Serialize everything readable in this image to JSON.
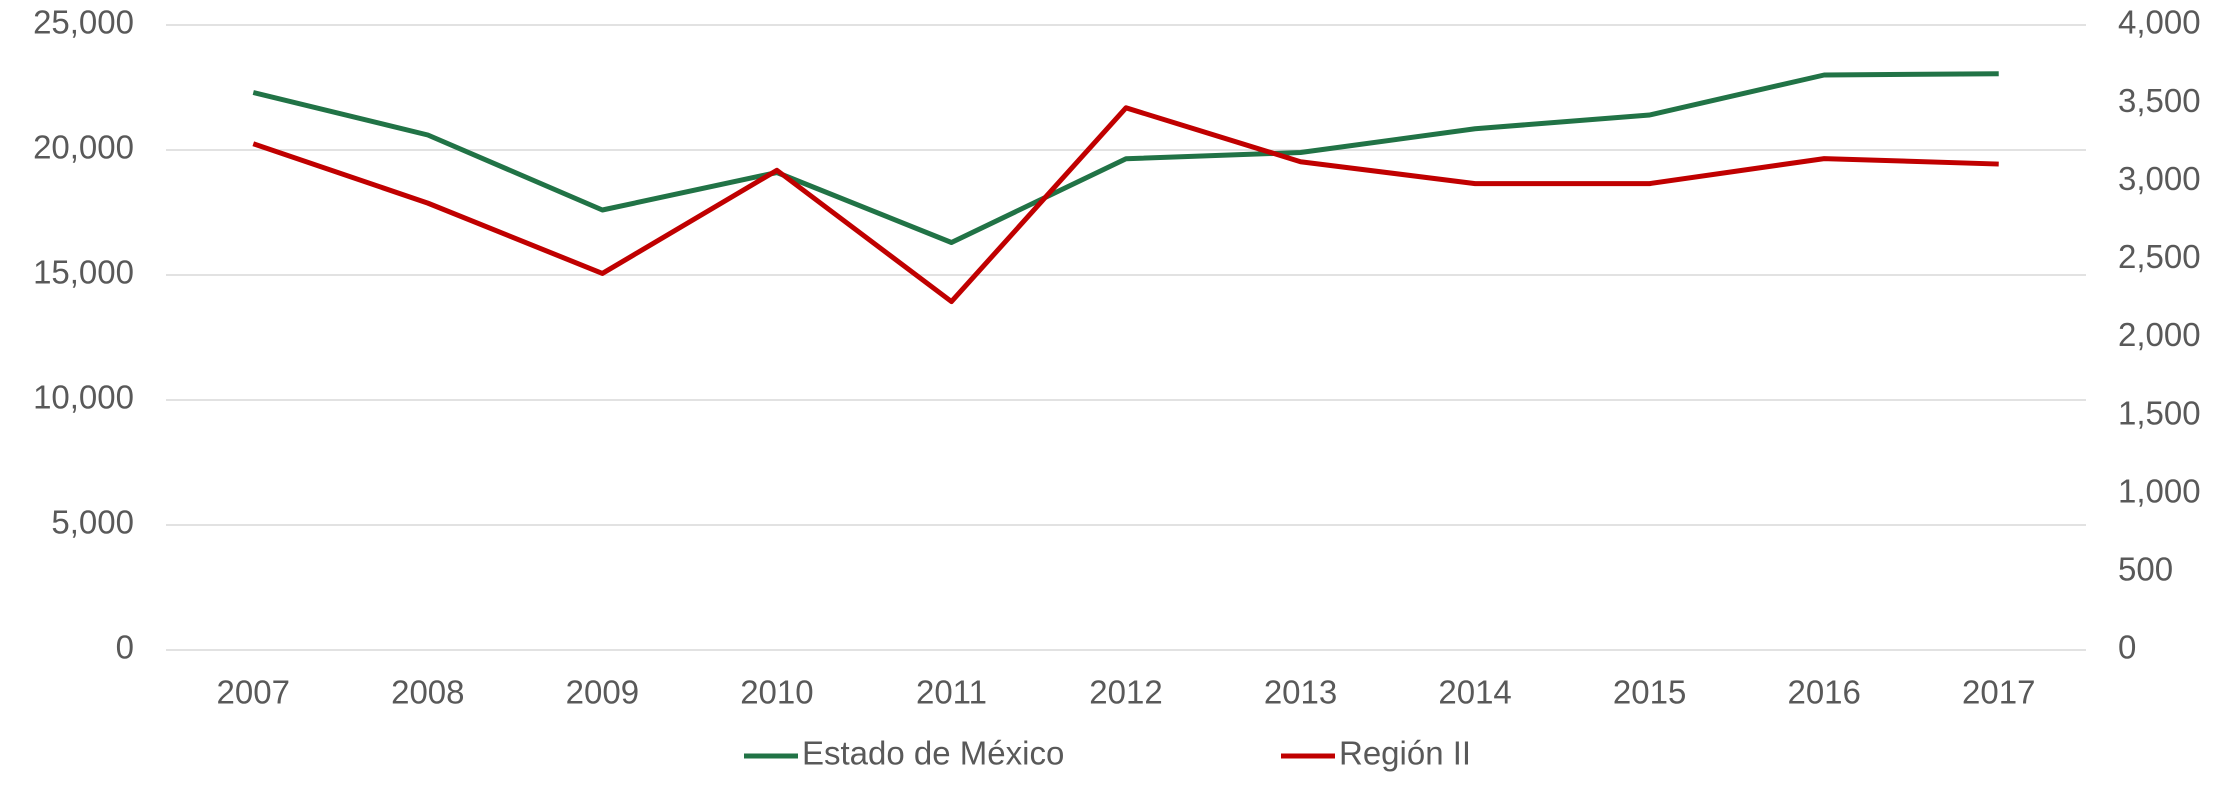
{
  "chart_data": {
    "type": "line",
    "categories": [
      "2007",
      "2008",
      "2009",
      "2010",
      "2011",
      "2012",
      "2013",
      "2014",
      "2015",
      "2016",
      "2017"
    ],
    "series": [
      {
        "name": "Estado de México",
        "color": "#217346",
        "values": [
          22300,
          20600,
          17600,
          19100,
          16300,
          19650,
          19900,
          20850,
          21400,
          23000,
          23050
        ]
      },
      {
        "name": "Región II",
        "color": "#c00000",
        "axis": "y2",
        "values": [
          3240,
          2860,
          2410,
          3070,
          2230,
          3470,
          3125,
          2985,
          2985,
          3145,
          3110
        ]
      }
    ],
    "ylim": [
      0,
      25000
    ],
    "yticks": [
      0,
      {
        "value": 5000,
        "label": "5,000"
      },
      {
        "value": 10000,
        "label": "10,000"
      },
      {
        "value": 15000,
        "label": "15,000"
      },
      {
        "value": 20000,
        "label": "20,000"
      },
      {
        "value": 25000,
        "label": "25,000"
      }
    ],
    "y2lim": [
      0,
      4000
    ],
    "y2ticks": [
      0,
      500,
      {
        "value": 1000,
        "label": "1,000"
      },
      {
        "value": 1500,
        "label": "1,500"
      },
      {
        "value": 2000,
        "label": "2,000"
      },
      {
        "value": 2500,
        "label": "2,500"
      },
      {
        "value": 3000,
        "label": "3,000"
      },
      {
        "value": 3500,
        "label": "3,500"
      },
      {
        "value": 4000,
        "label": "4,000"
      }
    ],
    "grid": true,
    "legend": "bottom"
  }
}
